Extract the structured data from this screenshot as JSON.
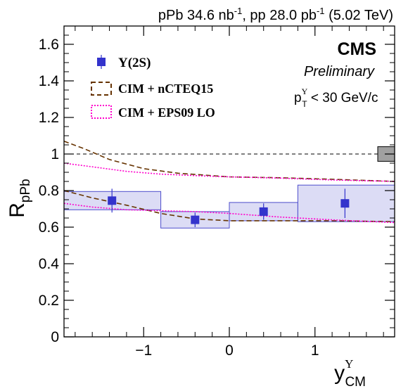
{
  "chart_data": {
    "type": "scatter",
    "top_label": {
      "pre1": "pPb 34.6 nb",
      "sup1": "-1",
      "mid": ", pp 28.0 pb",
      "sup2": "-1",
      "post": " (5.02 TeV)"
    },
    "experiment": "CMS",
    "status": "Preliminary",
    "cut": {
      "p": "p",
      "sub": "T",
      "sup": "Υ",
      "rest": " < 30 GeV/c"
    },
    "ylabel": {
      "main": "R",
      "sub": "pPb"
    },
    "xlabel": {
      "main": "y",
      "sup": "Υ",
      "sub": "CM"
    },
    "xlim": [
      -1.93,
      1.93
    ],
    "ylim": [
      0,
      1.7
    ],
    "x_ticks": [
      -1,
      0,
      1
    ],
    "x_tick_labels": [
      "−1",
      "0",
      "1"
    ],
    "y_ticks": [
      0,
      0.2,
      0.4,
      0.6,
      0.8,
      1,
      1.2,
      1.4,
      1.6
    ],
    "y_tick_labels": [
      "0",
      "0.2",
      "0.4",
      "0.6",
      "0.8",
      "1",
      "1.2",
      "1.4",
      "1.6"
    ],
    "reference_line": 1,
    "series": [
      {
        "name": "Υ(2S)",
        "color": "#3333cc",
        "points": [
          {
            "x": -1.37,
            "y": 0.745,
            "stat": 0.065,
            "syst_lo": -1.93,
            "syst_hi": -0.8,
            "syst": 0.05
          },
          {
            "x": -0.4,
            "y": 0.64,
            "stat": 0.04,
            "syst_lo": -0.8,
            "syst_hi": 0.0,
            "syst": 0.045
          },
          {
            "x": 0.4,
            "y": 0.685,
            "stat": 0.045,
            "syst_lo": 0.0,
            "syst_hi": 0.8,
            "syst": 0.05
          },
          {
            "x": 1.35,
            "y": 0.73,
            "stat": 0.08,
            "syst_lo": 0.8,
            "syst_hi": 1.93,
            "syst": 0.1
          }
        ]
      }
    ],
    "models": [
      {
        "name": "CIM + nCTEQ15",
        "color": "#663300",
        "style": "dashed",
        "upper": [
          [
            -1.93,
            1.07
          ],
          [
            -1.7,
            1.03
          ],
          [
            -1.4,
            0.97
          ],
          [
            -1.0,
            0.92
          ],
          [
            -0.6,
            0.895
          ],
          [
            0,
            0.875
          ],
          [
            0.6,
            0.87
          ],
          [
            1.2,
            0.862
          ],
          [
            1.93,
            0.85
          ]
        ],
        "lower": [
          [
            -1.93,
            0.8
          ],
          [
            -1.6,
            0.76
          ],
          [
            -1.2,
            0.72
          ],
          [
            -0.8,
            0.675
          ],
          [
            -0.4,
            0.645
          ],
          [
            0,
            0.635
          ],
          [
            0.6,
            0.635
          ],
          [
            1.2,
            0.635
          ],
          [
            1.93,
            0.63
          ]
        ]
      },
      {
        "name": "CIM + EPS09 LO",
        "color": "#ff00cc",
        "style": "dotted",
        "upper": [
          [
            -1.93,
            0.95
          ],
          [
            -1.6,
            0.93
          ],
          [
            -1.2,
            0.905
          ],
          [
            -0.8,
            0.89
          ],
          [
            -0.4,
            0.882
          ],
          [
            0,
            0.875
          ],
          [
            0.6,
            0.868
          ],
          [
            1.2,
            0.858
          ],
          [
            1.93,
            0.85
          ]
        ],
        "lower": [
          [
            -1.93,
            0.73
          ],
          [
            -1.6,
            0.71
          ],
          [
            -1.2,
            0.695
          ],
          [
            -0.8,
            0.69
          ],
          [
            -0.4,
            0.685
          ],
          [
            0,
            0.675
          ],
          [
            0.6,
            0.655
          ],
          [
            1.2,
            0.64
          ],
          [
            1.93,
            0.625
          ]
        ]
      }
    ],
    "global_uncertainty": {
      "y_lo": 0.96,
      "y_hi": 1.04,
      "color": "#a0a0a0"
    },
    "syst_box_fill": "#dcdcf5",
    "syst_box_stroke": "#4d4dcc",
    "legend": {
      "placement": "top-left",
      "items": [
        {
          "label": "Υ(2S)",
          "kind": "marker"
        },
        {
          "label": "CIM + nCTEQ15",
          "kind": "dashed"
        },
        {
          "label": "CIM + EPS09 LO",
          "kind": "dotted"
        }
      ]
    }
  }
}
